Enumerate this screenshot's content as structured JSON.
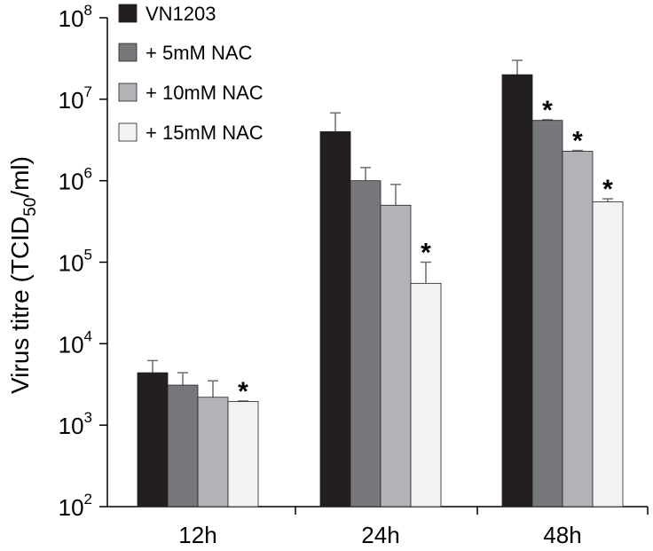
{
  "chart_data": {
    "type": "bar",
    "title": "",
    "xlabel": "",
    "ylabel": "Virus titre (TCID50/ml)",
    "ylabel_parts": {
      "before": "Virus titre (TCID",
      "sub": "50",
      "after": "/ml)"
    },
    "yscale": "log",
    "ylim": [
      100,
      100000000
    ],
    "yticks": [
      {
        "value": 100,
        "base": "10",
        "exp": "2"
      },
      {
        "value": 1000,
        "base": "10",
        "exp": "3"
      },
      {
        "value": 10000,
        "base": "10",
        "exp": "4"
      },
      {
        "value": 100000,
        "base": "10",
        "exp": "5"
      },
      {
        "value": 1000000,
        "base": "10",
        "exp": "6"
      },
      {
        "value": 10000000,
        "base": "10",
        "exp": "7"
      },
      {
        "value": 100000000,
        "base": "10",
        "exp": "8"
      }
    ],
    "categories": [
      "12h",
      "24h",
      "48h"
    ],
    "legend_position": "top-left",
    "significance_marker": "*",
    "series": [
      {
        "name": "VN1203",
        "color": "#231f20",
        "values": [
          4400,
          4000000,
          20000000
        ],
        "errors": [
          6200,
          6800000,
          30000000
        ],
        "significant": [
          false,
          false,
          false
        ]
      },
      {
        "name": "+ 5mM NAC",
        "color": "#77787b",
        "values": [
          3100,
          1000000,
          5500000
        ],
        "errors": [
          4400,
          1450000,
          5600000
        ],
        "significant": [
          false,
          false,
          true
        ]
      },
      {
        "name": "+ 10mM NAC",
        "color": "#b1b3b6",
        "values": [
          2200,
          500000,
          2300000
        ],
        "errors": [
          3500,
          900000,
          2350000
        ],
        "significant": [
          false,
          false,
          true
        ]
      },
      {
        "name": "+ 15mM NAC",
        "color": "#f1f2f2",
        "values": [
          1950,
          55000,
          550000
        ],
        "errors": [
          1980,
          100000,
          600000
        ],
        "significant": [
          true,
          true,
          true
        ]
      }
    ]
  }
}
